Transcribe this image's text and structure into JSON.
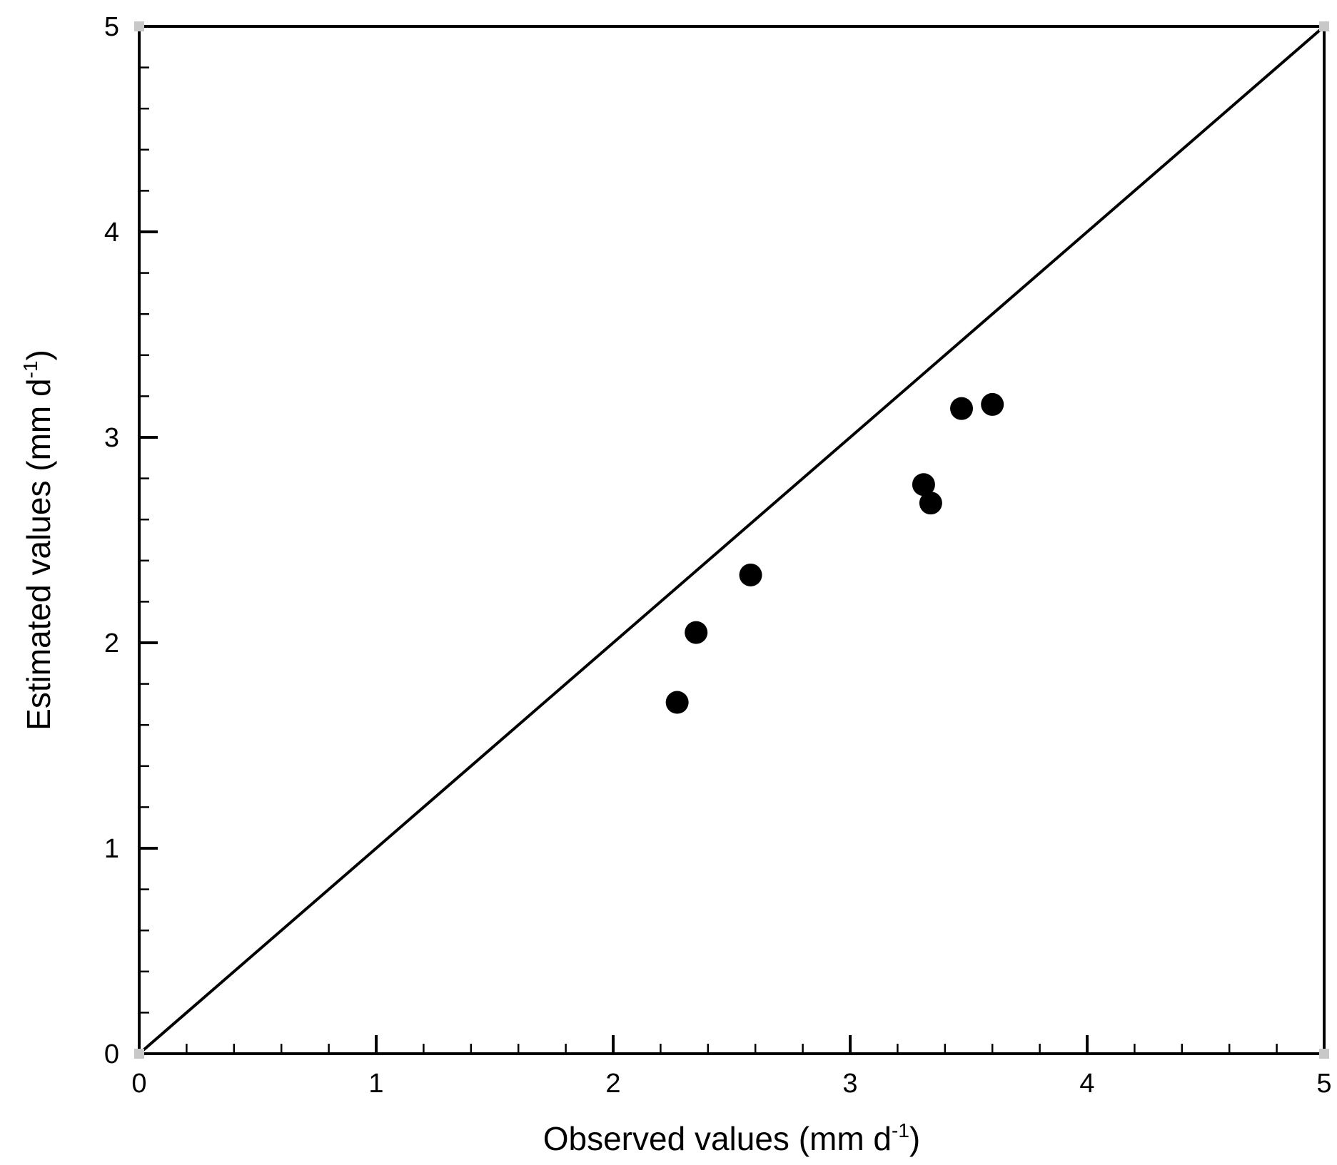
{
  "chart_data": {
    "type": "scatter",
    "xlabel": "Observed values (mm d",
    "xlabel_sup": "-1",
    "xlabel_end": ")",
    "ylabel": "Estimated values (mm d",
    "ylabel_sup": "-1",
    "ylabel_end": ")",
    "xlim": [
      0,
      5
    ],
    "ylim": [
      0,
      5
    ],
    "x_ticks": [
      "0",
      "1",
      "2",
      "3",
      "4",
      "5"
    ],
    "y_ticks": [
      "0",
      "1",
      "2",
      "3",
      "4",
      "5"
    ],
    "minor_tick_step": 0.2,
    "grid": false,
    "reference_line": {
      "from": [
        0,
        0
      ],
      "to": [
        5,
        5
      ]
    },
    "points": [
      {
        "x": 2.27,
        "y": 1.71
      },
      {
        "x": 2.35,
        "y": 2.05
      },
      {
        "x": 2.58,
        "y": 2.33
      },
      {
        "x": 3.31,
        "y": 2.77
      },
      {
        "x": 3.34,
        "y": 2.68
      },
      {
        "x": 3.47,
        "y": 3.14
      },
      {
        "x": 3.6,
        "y": 3.16
      }
    ],
    "marker_color": "#000000"
  }
}
